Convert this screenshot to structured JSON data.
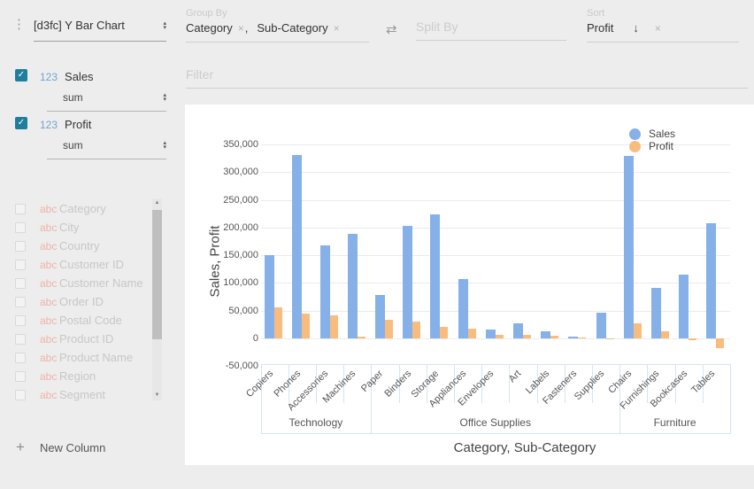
{
  "icons": {
    "kebab": "⋮",
    "select_up": "▴",
    "select_down": "▾",
    "swap": "⇄",
    "sort_desc": "↓",
    "close": "×",
    "check": "✓",
    "scroll_up": "▲",
    "scroll_down": "▼",
    "plus": "+"
  },
  "colors": {
    "background": "#ededed",
    "panel": "#ffffff",
    "accent": "#1f7e9d",
    "numeric_type": "#72a3d3",
    "string_type": "#efb2a9",
    "axis_border": "#d5e4f4"
  },
  "sidebar": {
    "chart_selector": {
      "value": "[d3fc] Y Bar Chart"
    },
    "active_columns": [
      {
        "type": "123",
        "name": "Sales",
        "aggregate": "sum",
        "checked": true
      },
      {
        "type": "123",
        "name": "Profit",
        "aggregate": "sum",
        "checked": true
      }
    ],
    "inactive_columns": [
      {
        "type": "abc",
        "name": "Category"
      },
      {
        "type": "abc",
        "name": "City"
      },
      {
        "type": "abc",
        "name": "Country"
      },
      {
        "type": "abc",
        "name": "Customer ID"
      },
      {
        "type": "abc",
        "name": "Customer Name"
      },
      {
        "type": "abc",
        "name": "Order ID"
      },
      {
        "type": "abc",
        "name": "Postal Code"
      },
      {
        "type": "abc",
        "name": "Product ID"
      },
      {
        "type": "abc",
        "name": "Product Name"
      },
      {
        "type": "abc",
        "name": "Region"
      },
      {
        "type": "abc",
        "name": "Segment"
      }
    ],
    "new_column_label": "New Column"
  },
  "controls": {
    "group_by": {
      "label": "Group By",
      "tags": [
        "Category",
        "Sub-Category"
      ],
      "separator": ","
    },
    "split_by": {
      "label": "Split By",
      "placeholder": "Split By",
      "value": ""
    },
    "sort": {
      "label": "Sort",
      "value": "Profit",
      "direction": "desc"
    },
    "filter": {
      "placeholder": "Filter",
      "value": ""
    }
  },
  "chart_data": {
    "type": "bar",
    "title": "",
    "xlabel": "Category, Sub-Category",
    "ylabel": "Sales, Profit",
    "ylim": [
      -50000,
      350000
    ],
    "ytick_step": 50000,
    "grid": true,
    "legend_position": "top-right",
    "groups": [
      {
        "label": "Technology",
        "categories_count": 4
      },
      {
        "label": "Office Supplies",
        "categories_count": 9
      },
      {
        "label": "Furniture",
        "categories_count": 4
      }
    ],
    "categories": [
      "Copiers",
      "Phones",
      "Accessories",
      "Machines",
      "Paper",
      "Binders",
      "Storage",
      "Appliances",
      "Envelopes",
      "Art",
      "Labels",
      "Fasteners",
      "Supplies",
      "Chairs",
      "Furnishings",
      "Bookcases",
      "Tables"
    ],
    "series": [
      {
        "name": "Sales",
        "color": "#85b1e8",
        "values": [
          149528,
          330007,
          167380,
          189239,
          78479,
          203413,
          223844,
          107532,
          16476,
          27119,
          12486,
          3024,
          46674,
          328449,
          91705,
          114880,
          206966
        ]
      },
      {
        "name": "Profit",
        "color": "#f9bc7f",
        "values": [
          55618,
          44516,
          41937,
          3385,
          34054,
          30222,
          21279,
          18138,
          6964,
          6528,
          5546,
          950,
          -1189,
          26590,
          13059,
          -3473,
          -17725
        ]
      }
    ]
  }
}
